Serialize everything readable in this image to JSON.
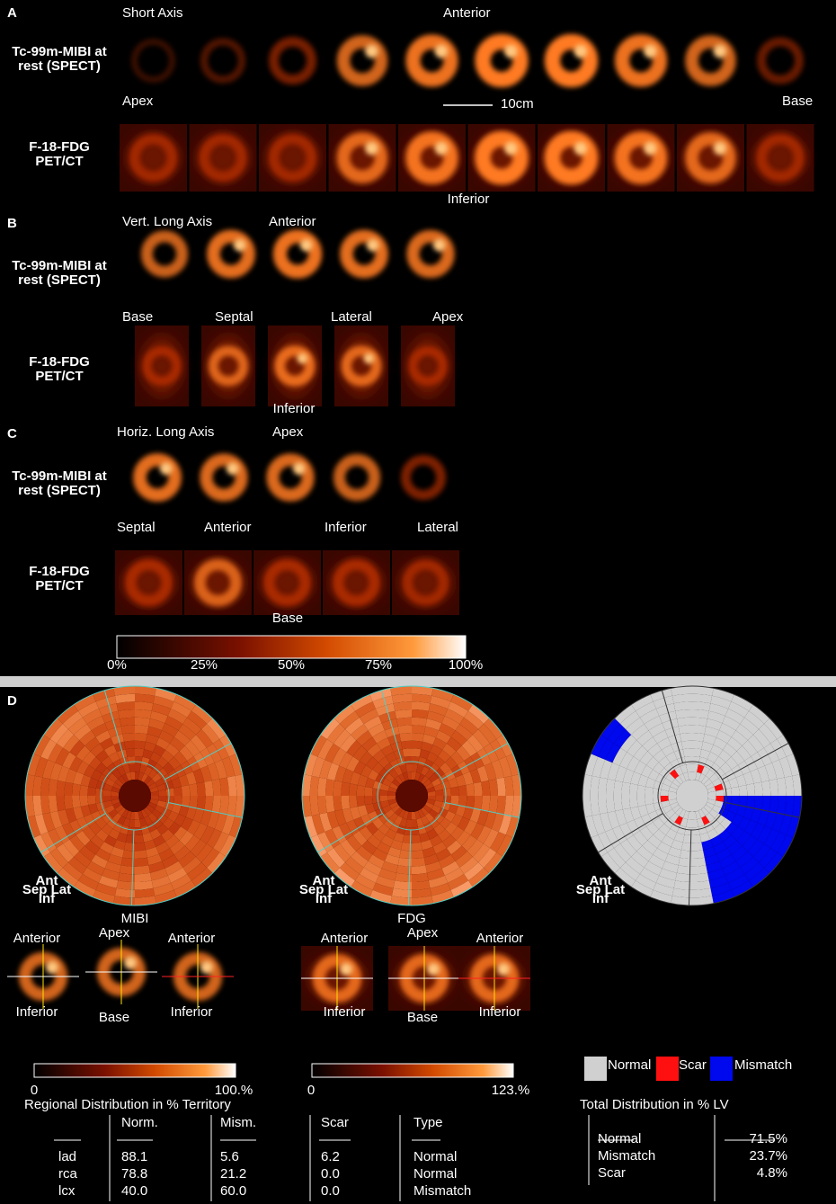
{
  "panel_a": {
    "label": "A",
    "title": "Short Axis",
    "top": "Anterior",
    "row1_label": [
      "Tc-99m-MIBI at",
      "rest (SPECT)"
    ],
    "left": "Apex",
    "scale": "10cm",
    "right": "Base",
    "row2_label": [
      "F-18-FDG",
      "PET/CT"
    ],
    "bottom": "Inferior"
  },
  "panel_b": {
    "label": "B",
    "title": "Vert. Long Axis",
    "top": "Anterior",
    "row1_label": [
      "Tc-99m-MIBI at",
      "rest (SPECT)"
    ],
    "sides": [
      "Base",
      "Septal",
      "Lateral",
      "Apex"
    ],
    "row2_label": [
      "F-18-FDG",
      "PET/CT"
    ],
    "bottom": "Inferior"
  },
  "panel_c": {
    "label": "C",
    "title": "Horiz. Long Axis",
    "top": "Apex",
    "row1_label": [
      "Tc-99m-MIBI at",
      "rest (SPECT)"
    ],
    "sides": [
      "Septal",
      "Anterior",
      "Inferior",
      "Lateral"
    ],
    "row2_label": [
      "F-18-FDG",
      "PET/CT"
    ],
    "bottom": "Base",
    "colorbar_ticks": [
      "0%",
      "25%",
      "50%",
      "75%",
      "100%"
    ]
  },
  "panel_d": {
    "label": "D",
    "orientation": [
      "Ant",
      "Sep Lat",
      "Inf"
    ],
    "maps": [
      {
        "name": "MIBI",
        "views": [
          "Anterior",
          "Apex",
          "Anterior",
          "Inferior",
          "Base",
          "Inferior"
        ],
        "scale": [
          "0",
          "100.%"
        ]
      },
      {
        "name": "FDG",
        "views": [
          "Anterior",
          "Apex",
          "Anterior",
          "Inferior",
          "Base",
          "Inferior"
        ],
        "scale": [
          "0",
          "123.%"
        ]
      }
    ],
    "legend": [
      "Normal",
      "Scar",
      "Mismatch"
    ],
    "regional": {
      "title": "Regional Distribution in % Territory",
      "headers": [
        "Norm.",
        "Mism.",
        "Scar",
        "Type"
      ],
      "rows": [
        [
          "lad",
          "88.1",
          "5.6",
          "6.2",
          "Normal"
        ],
        [
          "rca",
          "78.8",
          "21.2",
          "0.0",
          "Normal"
        ],
        [
          "lcx",
          "40.0",
          "60.0",
          "0.0",
          "Mismatch"
        ]
      ]
    },
    "total": {
      "title": "Total Distribution in % LV",
      "rows": [
        [
          "Normal",
          "71.5%"
        ],
        [
          "Mismatch",
          "23.7%"
        ],
        [
          "Scar",
          "4.8%"
        ]
      ]
    }
  }
}
